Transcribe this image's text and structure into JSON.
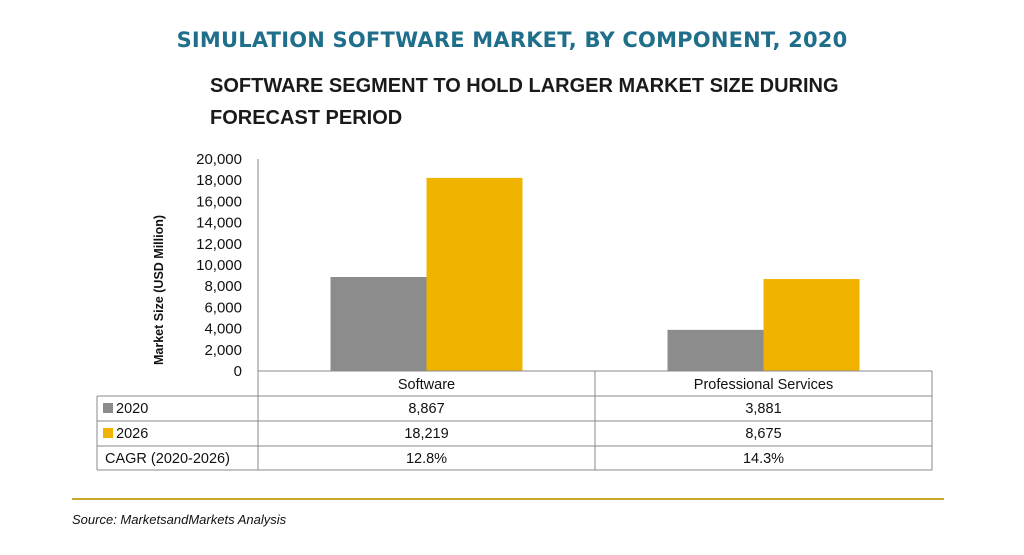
{
  "title": "SIMULATION SOFTWARE MARKET, BY COMPONENT, 2020",
  "subtitle": "SOFTWARE SEGMENT TO HOLD LARGER MARKET SIZE DURING FORECAST PERIOD",
  "source": "Source: MarketsandMarkets Analysis",
  "colors": {
    "s2020": "#8c8c8c",
    "s2026": "#f0b400",
    "title": "#1f6f8b",
    "rule": "#c8a62a"
  },
  "chart_data": {
    "type": "bar",
    "title": "SIMULATION SOFTWARE MARKET, BY COMPONENT, 2020",
    "ylabel": "Market Size (USD Million)",
    "xlabel": "",
    "ylim": [
      0,
      20000
    ],
    "yticks": [
      "20,000",
      "18,000",
      "16,000",
      "14,000",
      "12,000",
      "10,000",
      "8,000",
      "6,000",
      "4,000",
      "2,000",
      "0"
    ],
    "categories": [
      "Software",
      "Professional Services"
    ],
    "series": [
      {
        "name": "2020",
        "values": [
          8867,
          3881
        ],
        "labels": [
          "8,867",
          "3,881"
        ]
      },
      {
        "name": "2026",
        "values": [
          18219,
          8675
        ],
        "labels": [
          "18,219",
          "8,675"
        ]
      }
    ],
    "extra_row": {
      "name": "CAGR (2020-2026)",
      "values": [
        "12.8%",
        "14.3%"
      ]
    },
    "grid": false,
    "legend": "table-below"
  }
}
